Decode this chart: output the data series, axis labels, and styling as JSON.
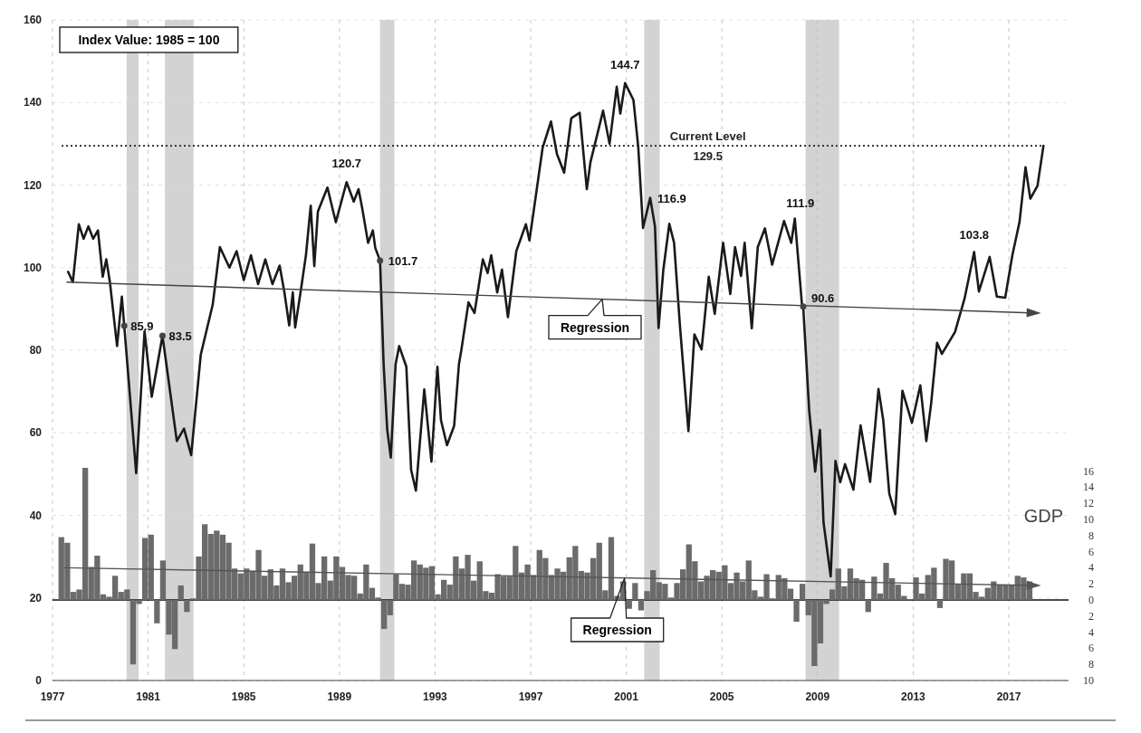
{
  "chart_data": {
    "type": "line",
    "x": [
      1977.65,
      1977.85,
      1978.1,
      1978.3,
      1978.5,
      1978.7,
      1978.9,
      1979.1,
      1979.25,
      1979.4,
      1979.7,
      1979.9,
      1980.0,
      1980.5,
      1980.85,
      1981.15,
      1981.6,
      1982.2,
      1982.5,
      1982.8,
      1983.2,
      1983.7,
      1984.0,
      1984.4,
      1984.7,
      1985.0,
      1985.3,
      1985.6,
      1985.9,
      1986.2,
      1986.5,
      1986.7,
      1986.9,
      1987.05,
      1987.15,
      1987.4,
      1987.6,
      1987.8,
      1987.95,
      1988.1,
      1988.5,
      1988.85,
      1989.3,
      1989.6,
      1989.8,
      1989.95,
      1990.2,
      1990.4,
      1990.5,
      1990.7,
      1990.85,
      1991.0,
      1991.15,
      1991.35,
      1991.5,
      1991.8,
      1992.0,
      1992.2,
      1992.55,
      1992.85,
      1993.1,
      1993.25,
      1993.5,
      1993.8,
      1994.0,
      1994.1,
      1994.4,
      1994.65,
      1995.0,
      1995.2,
      1995.35,
      1995.6,
      1995.8,
      1996.05,
      1996.4,
      1996.8,
      1996.95,
      1997.2,
      1997.5,
      1997.85,
      1998.1,
      1998.4,
      1998.7,
      1999.05,
      1999.35,
      1999.5,
      2000.03,
      2000.3,
      2000.6,
      2000.75,
      2000.95,
      2001.3,
      2001.5,
      2001.7,
      2002.0,
      2002.2,
      2002.35,
      2002.55,
      2002.8,
      2003.0,
      2003.25,
      2003.6,
      2003.85,
      2004.0,
      2004.15,
      2004.45,
      2004.7,
      2005.05,
      2005.35,
      2005.55,
      2005.8,
      2005.95,
      2006.25,
      2006.5,
      2006.8,
      2007.1,
      2007.6,
      2007.9,
      2008.05,
      2008.35,
      2008.4,
      2008.65,
      2008.9,
      2009.1,
      2009.25,
      2009.55,
      2009.75,
      2009.95,
      2010.15,
      2010.5,
      2010.8,
      2011.2,
      2011.55,
      2011.75,
      2012.0,
      2012.25,
      2012.55,
      2012.95,
      2013.3,
      2013.55,
      2013.75,
      2014.0,
      2014.2,
      2014.75,
      2015.15,
      2015.55,
      2015.75,
      2016.2,
      2016.5,
      2016.85,
      2017.15,
      2017.45,
      2017.7,
      2017.9,
      2018.2,
      2018.45
    ],
    "xlim": [
      1977,
      2019.5
    ],
    "xticks": [
      1977,
      1981,
      1985,
      1989,
      1993,
      1997,
      2001,
      2005,
      2009,
      2013,
      2017
    ],
    "ylim": [
      0,
      160
    ],
    "yticks": [
      0,
      20,
      40,
      60,
      80,
      100,
      120,
      140,
      160
    ],
    "y2lim": [
      -10,
      72
    ],
    "y2ticks": [
      {
        "value": -10,
        "label": "10"
      },
      {
        "value": -8,
        "label": "8"
      },
      {
        "value": -6,
        "label": "6"
      },
      {
        "value": -4,
        "label": "4"
      },
      {
        "value": -2,
        "label": "2"
      },
      0,
      2,
      4,
      6,
      8,
      10,
      12,
      14,
      16
    ],
    "y2label": "GDP",
    "grid": true,
    "series": [
      {
        "color": "#1a1a1a",
        "values": [
          99,
          96.5,
          110.5,
          107,
          110,
          107,
          109,
          97.8,
          102,
          96.5,
          81,
          93,
          85.9,
          50.2,
          84.6,
          68.7,
          83.5,
          58,
          61,
          54.6,
          78.9,
          91,
          105,
          100,
          104,
          97,
          103,
          96,
          102,
          96,
          100.5,
          94,
          86,
          94,
          85.5,
          95,
          103,
          115,
          100.4,
          113.6,
          119.4,
          111,
          120.7,
          116,
          119,
          114.5,
          106,
          109,
          104.8,
          101.7,
          76.6,
          60.8,
          54,
          76.6,
          81,
          76,
          51,
          46,
          70.5,
          53,
          76,
          63,
          57,
          61.7,
          76.6,
          80,
          91.6,
          89,
          102,
          98.7,
          103,
          94,
          99.5,
          88,
          104,
          110.5,
          106.6,
          116.7,
          129,
          135.4,
          127.5,
          123,
          136.2,
          137.5,
          119,
          125.5,
          138,
          130,
          143.8,
          137.3,
          144.7,
          140.6,
          129.3,
          109.6,
          116.9,
          110,
          85.4,
          99.5,
          110.6,
          106,
          85.5,
          60.4,
          83.8,
          82,
          80.2,
          97.8,
          88.8,
          106,
          93.6,
          105,
          98,
          106,
          85.3,
          105,
          109.5,
          100.7,
          111.3,
          106,
          111.9,
          91,
          90.6,
          65.5,
          50.6,
          60.7,
          38.3,
          25.2,
          53.2,
          48,
          52.4,
          46.2,
          61.8,
          48.1,
          70.6,
          63,
          45.3,
          40.3,
          70.2,
          62.4,
          71.5,
          58,
          67,
          81.8,
          79.1,
          84.4,
          92.5,
          103.8,
          94.2,
          102.6,
          93,
          92.7,
          103,
          111.1,
          124.3,
          116.7,
          119.8,
          129.5
        ]
      },
      {
        "type": "line",
        "color": "#444444",
        "x": [
          1977.6,
          2018.2
        ],
        "values": [
          96.5,
          89
        ]
      },
      {
        "type": "bar",
        "axis": "y2",
        "color": "#6b6b6b",
        "x": [
          1977.375,
          1977.625,
          1977.875,
          1978.125,
          1978.375,
          1978.625,
          1978.875,
          1979.125,
          1979.375,
          1979.625,
          1979.875,
          1980.125,
          1980.375,
          1980.625,
          1980.875,
          1981.125,
          1981.375,
          1981.625,
          1981.875,
          1982.125,
          1982.375,
          1982.625,
          1982.875,
          1983.125,
          1983.375,
          1983.625,
          1983.875,
          1984.125,
          1984.375,
          1984.625,
          1984.875,
          1985.125,
          1985.375,
          1985.625,
          1985.875,
          1986.125,
          1986.375,
          1986.625,
          1986.875,
          1987.125,
          1987.375,
          1987.625,
          1987.875,
          1988.125,
          1988.375,
          1988.625,
          1988.875,
          1989.125,
          1989.375,
          1989.625,
          1989.875,
          1990.125,
          1990.375,
          1990.625,
          1990.875,
          1991.125,
          1991.375,
          1991.625,
          1991.875,
          1992.125,
          1992.375,
          1992.625,
          1992.875,
          1993.125,
          1993.375,
          1993.625,
          1993.875,
          1994.125,
          1994.375,
          1994.625,
          1994.875,
          1995.125,
          1995.375,
          1995.625,
          1995.875,
          1996.125,
          1996.375,
          1996.625,
          1996.875,
          1997.125,
          1997.375,
          1997.625,
          1997.875,
          1998.125,
          1998.375,
          1998.625,
          1998.875,
          1999.125,
          1999.375,
          1999.625,
          1999.875,
          2000.125,
          2000.375,
          2000.625,
          2000.875,
          2001.125,
          2001.375,
          2001.625,
          2001.875,
          2002.125,
          2002.375,
          2002.625,
          2002.875,
          2003.125,
          2003.375,
          2003.625,
          2003.875,
          2004.125,
          2004.375,
          2004.625,
          2004.875,
          2005.125,
          2005.375,
          2005.625,
          2005.875,
          2006.125,
          2006.375,
          2006.625,
          2006.875,
          2007.125,
          2007.375,
          2007.625,
          2007.875,
          2008.125,
          2008.375,
          2008.625,
          2008.875,
          2009.125,
          2009.375,
          2009.625,
          2009.875,
          2010.125,
          2010.375,
          2010.625,
          2010.875,
          2011.125,
          2011.375,
          2011.625,
          2011.875,
          2012.125,
          2012.375,
          2012.625,
          2012.875,
          2013.125,
          2013.375,
          2013.625,
          2013.875,
          2014.125,
          2014.375,
          2014.625,
          2014.875,
          2015.125,
          2015.375,
          2015.625,
          2015.875,
          2016.125,
          2016.375,
          2016.625,
          2016.875,
          2017.125,
          2017.375,
          2017.625,
          2017.875
        ],
        "values": [
          7.8,
          7.1,
          1.0,
          1.3,
          16.4,
          4.1,
          5.5,
          0.7,
          0.4,
          3.0,
          1.0,
          1.3,
          -8.0,
          -0.5,
          7.7,
          8.1,
          -2.9,
          4.9,
          -4.3,
          -6.1,
          1.8,
          -1.5,
          0.2,
          5.4,
          9.4,
          8.2,
          8.6,
          8.1,
          7.1,
          3.9,
          3.3,
          3.9,
          3.6,
          6.2,
          3.0,
          3.8,
          1.8,
          3.9,
          2.2,
          3.0,
          4.4,
          3.5,
          7.0,
          2.1,
          5.4,
          2.4,
          5.4,
          4.1,
          3.1,
          3.0,
          0.8,
          4.4,
          1.5,
          0.3,
          -3.6,
          -1.9,
          3.2,
          2.0,
          1.9,
          4.9,
          4.4,
          4.0,
          4.2,
          0.7,
          2.5,
          1.9,
          5.4,
          3.9,
          5.6,
          2.4,
          4.8,
          1.1,
          0.9,
          3.2,
          2.9,
          2.9,
          6.7,
          3.4,
          4.4,
          3.1,
          6.2,
          5.2,
          3.1,
          3.9,
          3.5,
          5.3,
          6.7,
          3.6,
          3.4,
          5.2,
          7.1,
          1.2,
          7.8,
          0.5,
          2.3,
          -1.1,
          2.1,
          -1.3,
          1.1,
          3.7,
          2.2,
          2.0,
          0.3,
          2.1,
          3.8,
          6.9,
          4.8,
          2.3,
          3.0,
          3.7,
          3.5,
          4.3,
          2.1,
          3.4,
          2.3,
          4.9,
          1.2,
          0.4,
          3.2,
          0.2,
          3.1,
          2.7,
          1.4,
          -2.7,
          2.0,
          -1.9,
          -8.2,
          -5.4,
          -0.5,
          1.3,
          3.9,
          1.7,
          3.9,
          2.7,
          2.5,
          -1.5,
          2.9,
          0.8,
          4.6,
          2.7,
          1.9,
          0.5,
          0.1,
          2.8,
          0.8,
          3.1,
          4.0,
          -1.0,
          5.1,
          4.9,
          1.9,
          3.3,
          3.3,
          1.0,
          0.4,
          1.5,
          2.3,
          1.9,
          1.8,
          1.8,
          3.0,
          2.8,
          2.3
        ]
      },
      {
        "type": "line",
        "axis": "y2",
        "color": "#555555",
        "x": [
          1977.5,
          2018.2
        ],
        "values": [
          4.0,
          1.8
        ]
      }
    ],
    "bands": [
      {
        "axis": "x",
        "from": 1980.1,
        "to": 1980.6,
        "color": "#c4c4c4"
      },
      {
        "axis": "x",
        "from": 1981.7,
        "to": 1982.9,
        "color": "#c4c4c4"
      },
      {
        "axis": "x",
        "from": 1990.7,
        "to": 1991.3,
        "color": "#c4c4c4"
      },
      {
        "axis": "x",
        "from": 2001.75,
        "to": 2002.4,
        "color": "#c4c4c4"
      },
      {
        "axis": "x",
        "from": 2008.5,
        "to": 2009.9,
        "color": "#c4c4c4"
      }
    ],
    "ref_lines": [
      {
        "axis": "y",
        "value": 129.5,
        "label": "Current Level\n129.5",
        "line_style": "dotted",
        "color": "#222222"
      }
    ],
    "annotations": [
      "Index Value: 1985 = 100",
      {
        "text": "85.9",
        "x": 1980.0,
        "y": 85.9
      },
      {
        "text": "83.5",
        "x": 1981.6,
        "y": 83.5
      },
      {
        "text": "120.7",
        "x": 1989.3,
        "y": 120.7
      },
      {
        "text": "101.7",
        "x": 1990.7,
        "y": 101.7
      },
      {
        "text": "144.7",
        "x": 2000.95,
        "y": 144.7
      },
      {
        "text": "116.9",
        "x": 2002.0,
        "y": 116.9
      },
      {
        "text": "111.9",
        "x": 2008.05,
        "y": 111.9
      },
      {
        "text": "90.6",
        "x": 2008.4,
        "y": 90.6
      },
      {
        "text": "103.8",
        "x": 2015.55,
        "y": 103.8
      },
      "Regression",
      "Regression"
    ]
  }
}
